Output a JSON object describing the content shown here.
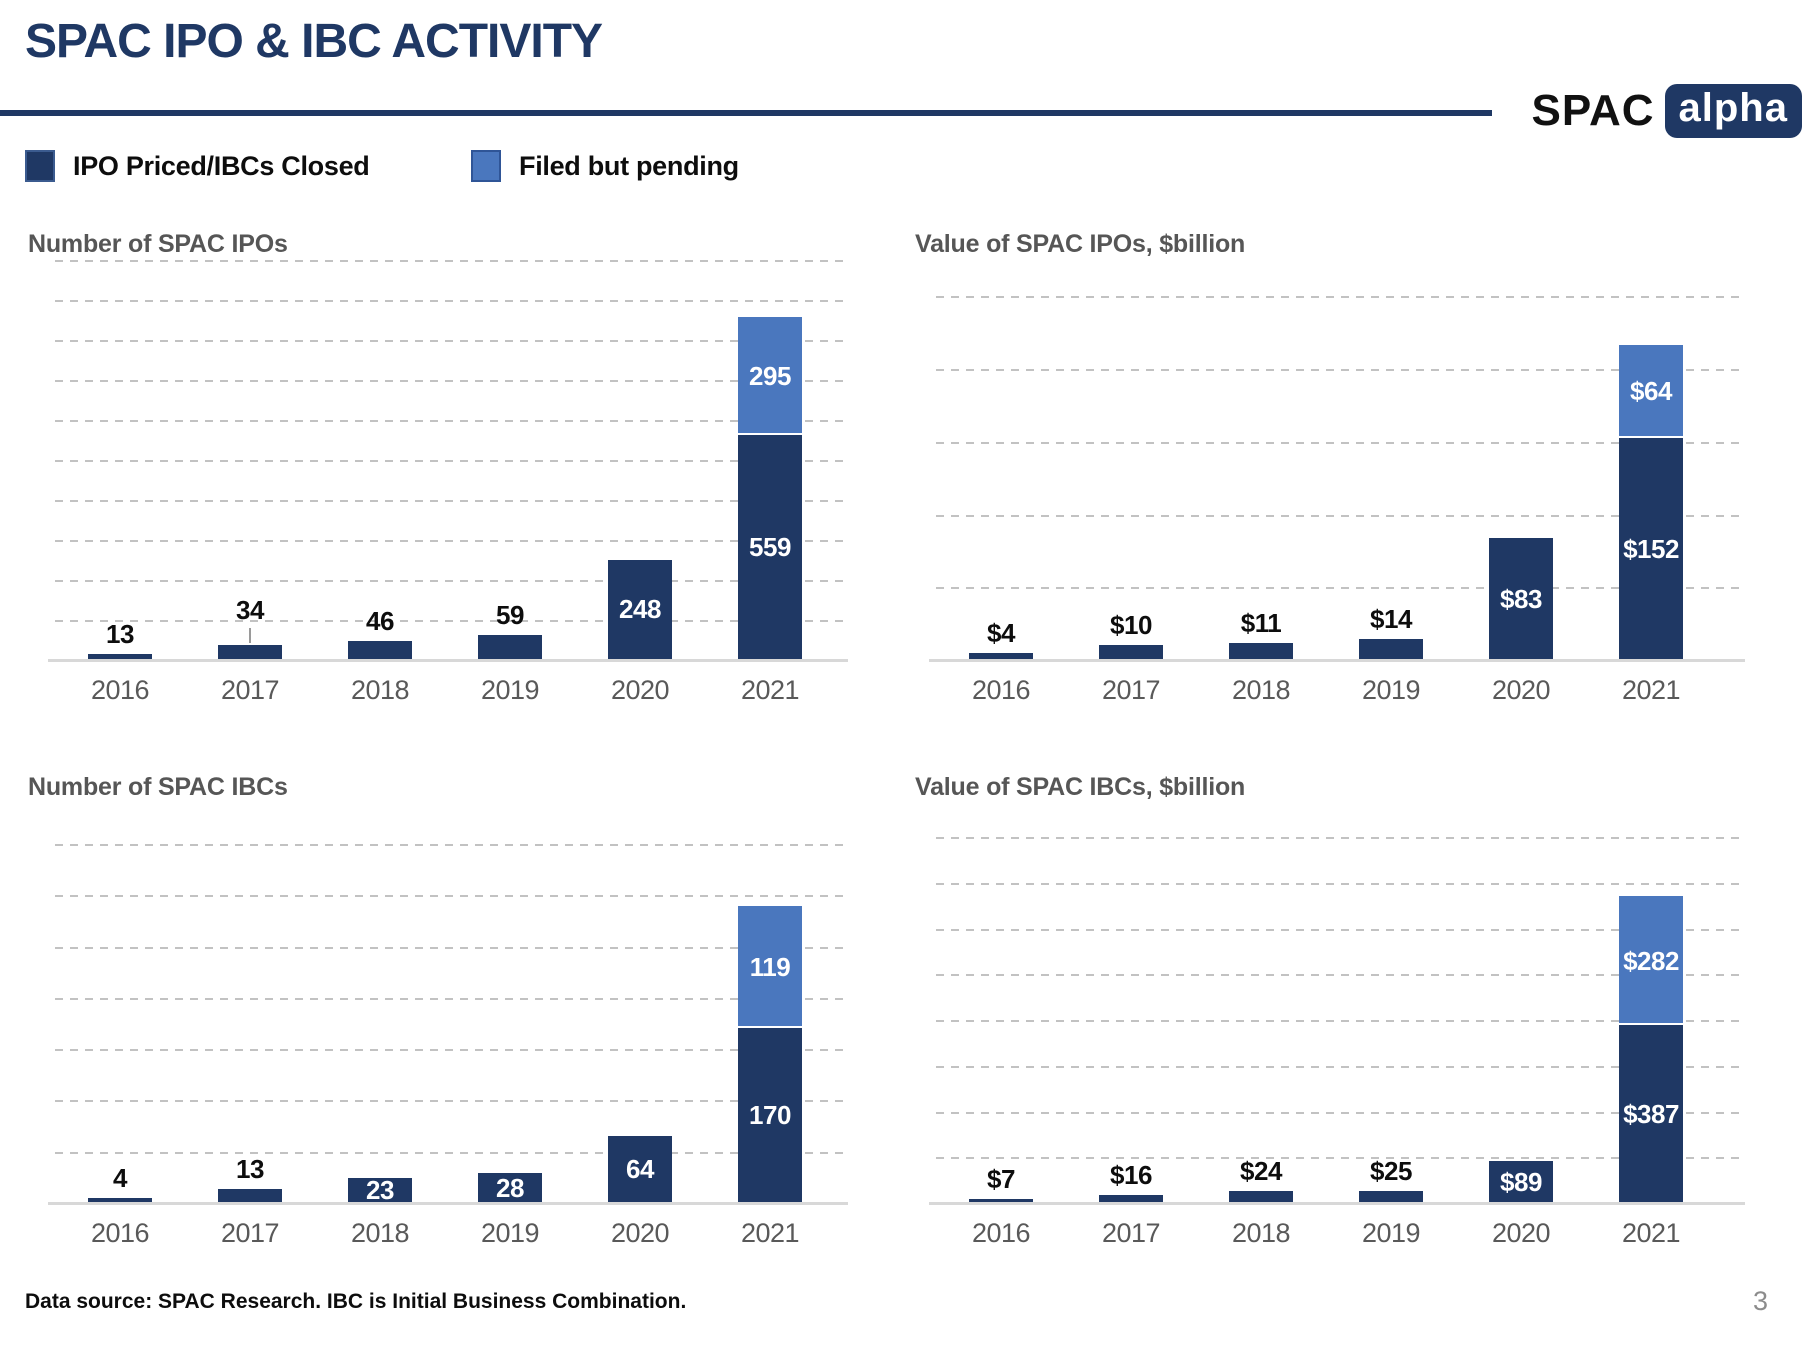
{
  "header": {
    "title": "SPAC IPO & IBC ACTIVITY",
    "logo_text": "SPAC",
    "logo_badge": "alpha"
  },
  "legend": {
    "items": [
      {
        "label": "IPO Priced/IBCs Closed",
        "color": "#1F3864"
      },
      {
        "label": "Filed but pending",
        "color": "#4A77BE"
      }
    ]
  },
  "footer": {
    "source_note": "Data source: SPAC Research. IBC is Initial Business Combination.",
    "page_number": "3"
  },
  "colors": {
    "closed": "#1F3864",
    "pending": "#4A77BE",
    "pending_border": "#2F5597",
    "title_navy": "#1F3864",
    "chart_title_gray": "#565656",
    "axis_gray": "#595959",
    "gridline": "#C2C2C2",
    "baseline": "#D8D8D8"
  },
  "chart_data": [
    {
      "id": "number-of-spac-ipos",
      "type": "bar",
      "stacked": true,
      "title": "Number of SPAC IPOs",
      "categories": [
        "2016",
        "2017",
        "2018",
        "2019",
        "2020",
        "2021"
      ],
      "series": [
        {
          "name": "IPO Priced/IBCs Closed",
          "role": "closed",
          "values": [
            13,
            34,
            46,
            59,
            248,
            559
          ],
          "labels": [
            "13",
            "34",
            "46",
            "59",
            "248",
            "559"
          ],
          "label_inside": [
            false,
            false,
            false,
            false,
            true,
            true
          ]
        },
        {
          "name": "Filed but pending",
          "role": "pending",
          "values": [
            0,
            0,
            0,
            0,
            0,
            295
          ],
          "labels": [
            "",
            "",
            "",
            "",
            "",
            "295"
          ],
          "label_inside": [
            true,
            true,
            true,
            true,
            true,
            true
          ]
        }
      ],
      "leader_lines": [
        false,
        true,
        false,
        false,
        false,
        false
      ],
      "ylim": [
        0,
        1000
      ],
      "gridline_step": 100,
      "grid": "horizontal-dashed",
      "legend_position": "top-of-slide"
    },
    {
      "id": "value-of-spac-ipos",
      "type": "bar",
      "stacked": true,
      "title": "Value of SPAC IPOs, $billion",
      "categories": [
        "2016",
        "2017",
        "2018",
        "2019",
        "2020",
        "2021"
      ],
      "series": [
        {
          "name": "IPO Priced/IBCs Closed",
          "role": "closed",
          "values": [
            4,
            10,
            11,
            14,
            83,
            152
          ],
          "labels": [
            "$4",
            "$10",
            "$11",
            "$14",
            "$83",
            "$152"
          ],
          "label_inside": [
            false,
            false,
            false,
            false,
            true,
            true
          ]
        },
        {
          "name": "Filed but pending",
          "role": "pending",
          "values": [
            0,
            0,
            0,
            0,
            0,
            64
          ],
          "labels": [
            "",
            "",
            "",
            "",
            "",
            "$64"
          ],
          "label_inside": [
            true,
            true,
            true,
            true,
            true,
            true
          ]
        }
      ],
      "leader_lines": [
        false,
        false,
        false,
        false,
        false,
        false
      ],
      "ylim": [
        0,
        275
      ],
      "gridline_step": 50,
      "grid": "horizontal-dashed",
      "legend_position": "top-of-slide"
    },
    {
      "id": "number-of-spac-ibcs",
      "type": "bar",
      "stacked": true,
      "title": "Number of SPAC IBCs",
      "categories": [
        "2016",
        "2017",
        "2018",
        "2019",
        "2020",
        "2021"
      ],
      "series": [
        {
          "name": "IPO Priced/IBCs Closed",
          "role": "closed",
          "values": [
            4,
            13,
            23,
            28,
            64,
            170
          ],
          "labels": [
            "4",
            "13",
            "23",
            "28",
            "64",
            "170"
          ],
          "label_inside": [
            false,
            false,
            true,
            true,
            true,
            true
          ]
        },
        {
          "name": "Filed but pending",
          "role": "pending",
          "values": [
            0,
            0,
            0,
            0,
            0,
            119
          ],
          "labels": [
            "",
            "",
            "",
            "",
            "",
            "119"
          ],
          "label_inside": [
            true,
            true,
            true,
            true,
            true,
            true
          ]
        }
      ],
      "leader_lines": [
        false,
        false,
        false,
        false,
        false,
        false
      ],
      "ylim": [
        0,
        390
      ],
      "gridline_step": 50,
      "grid": "horizontal-dashed",
      "legend_position": "top-of-slide"
    },
    {
      "id": "value-of-spac-ibcs",
      "type": "bar",
      "stacked": true,
      "title": "Value of SPAC IBCs, $billion",
      "categories": [
        "2016",
        "2017",
        "2018",
        "2019",
        "2020",
        "2021"
      ],
      "series": [
        {
          "name": "IPO Priced/IBCs Closed",
          "role": "closed",
          "values": [
            7,
            16,
            24,
            25,
            89,
            387
          ],
          "labels": [
            "$7",
            "$16",
            "$24",
            "$25",
            "$89",
            "$387"
          ],
          "label_inside": [
            false,
            false,
            false,
            false,
            true,
            true
          ]
        },
        {
          "name": "Filed but pending",
          "role": "pending",
          "values": [
            0,
            0,
            0,
            0,
            0,
            282
          ],
          "labels": [
            "",
            "",
            "",
            "",
            "",
            "$282"
          ],
          "label_inside": [
            true,
            true,
            true,
            true,
            true,
            true
          ]
        }
      ],
      "leader_lines": [
        false,
        false,
        false,
        false,
        false,
        false
      ],
      "ylim": [
        0,
        875
      ],
      "gridline_step": 100,
      "grid": "horizontal-dashed",
      "legend_position": "top-of-slide"
    }
  ]
}
